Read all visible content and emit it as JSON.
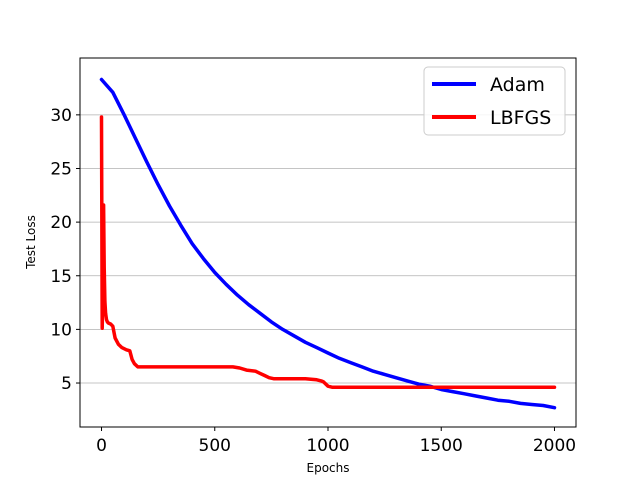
{
  "chart_data": {
    "type": "line",
    "title": "",
    "xlabel": "Epochs",
    "ylabel": "Test Loss",
    "xlim": [
      -95,
      2095
    ],
    "ylim": [
      0.9,
      35.3
    ],
    "x_ticks": [
      0,
      500,
      1000,
      1500,
      2000
    ],
    "y_ticks": [
      5,
      10,
      15,
      20,
      25,
      30
    ],
    "grid": "horizontal",
    "legend_position": "top-right",
    "series": [
      {
        "name": "Adam",
        "color": "#0000ff",
        "x": [
          0,
          50,
          100,
          150,
          200,
          250,
          300,
          350,
          400,
          450,
          500,
          550,
          600,
          650,
          700,
          750,
          800,
          850,
          900,
          950,
          1000,
          1050,
          1100,
          1150,
          1200,
          1250,
          1300,
          1350,
          1400,
          1450,
          1500,
          1550,
          1600,
          1650,
          1700,
          1750,
          1800,
          1850,
          1900,
          1950,
          2000
        ],
        "y": [
          33.3,
          32.1,
          30.0,
          27.8,
          25.6,
          23.5,
          21.5,
          19.7,
          18.0,
          16.6,
          15.3,
          14.2,
          13.2,
          12.3,
          11.5,
          10.7,
          10.0,
          9.4,
          8.8,
          8.3,
          7.8,
          7.3,
          6.9,
          6.5,
          6.1,
          5.8,
          5.5,
          5.2,
          4.9,
          4.7,
          4.4,
          4.2,
          4.0,
          3.8,
          3.6,
          3.4,
          3.3,
          3.1,
          3.0,
          2.9,
          2.7
        ]
      },
      {
        "name": "LBFGS",
        "color": "#ff0000",
        "x": [
          0,
          3,
          6,
          9,
          12,
          15,
          18,
          22,
          26,
          30,
          40,
          50,
          60,
          75,
          90,
          110,
          125,
          135,
          145,
          160,
          200,
          300,
          400,
          500,
          580,
          610,
          640,
          680,
          700,
          720,
          740,
          760,
          800,
          900,
          950,
          970,
          980,
          1000,
          1020,
          1100,
          1200,
          1500,
          1800,
          2000
        ],
        "y": [
          29.8,
          10.1,
          13.5,
          21.6,
          15.8,
          12.6,
          11.5,
          10.9,
          10.7,
          10.6,
          10.5,
          10.3,
          9.2,
          8.6,
          8.3,
          8.1,
          8.0,
          7.2,
          6.8,
          6.5,
          6.5,
          6.5,
          6.5,
          6.5,
          6.5,
          6.4,
          6.2,
          6.1,
          5.9,
          5.7,
          5.5,
          5.4,
          5.4,
          5.4,
          5.3,
          5.2,
          5.1,
          4.7,
          4.6,
          4.6,
          4.6,
          4.6,
          4.6,
          4.6
        ]
      }
    ]
  }
}
